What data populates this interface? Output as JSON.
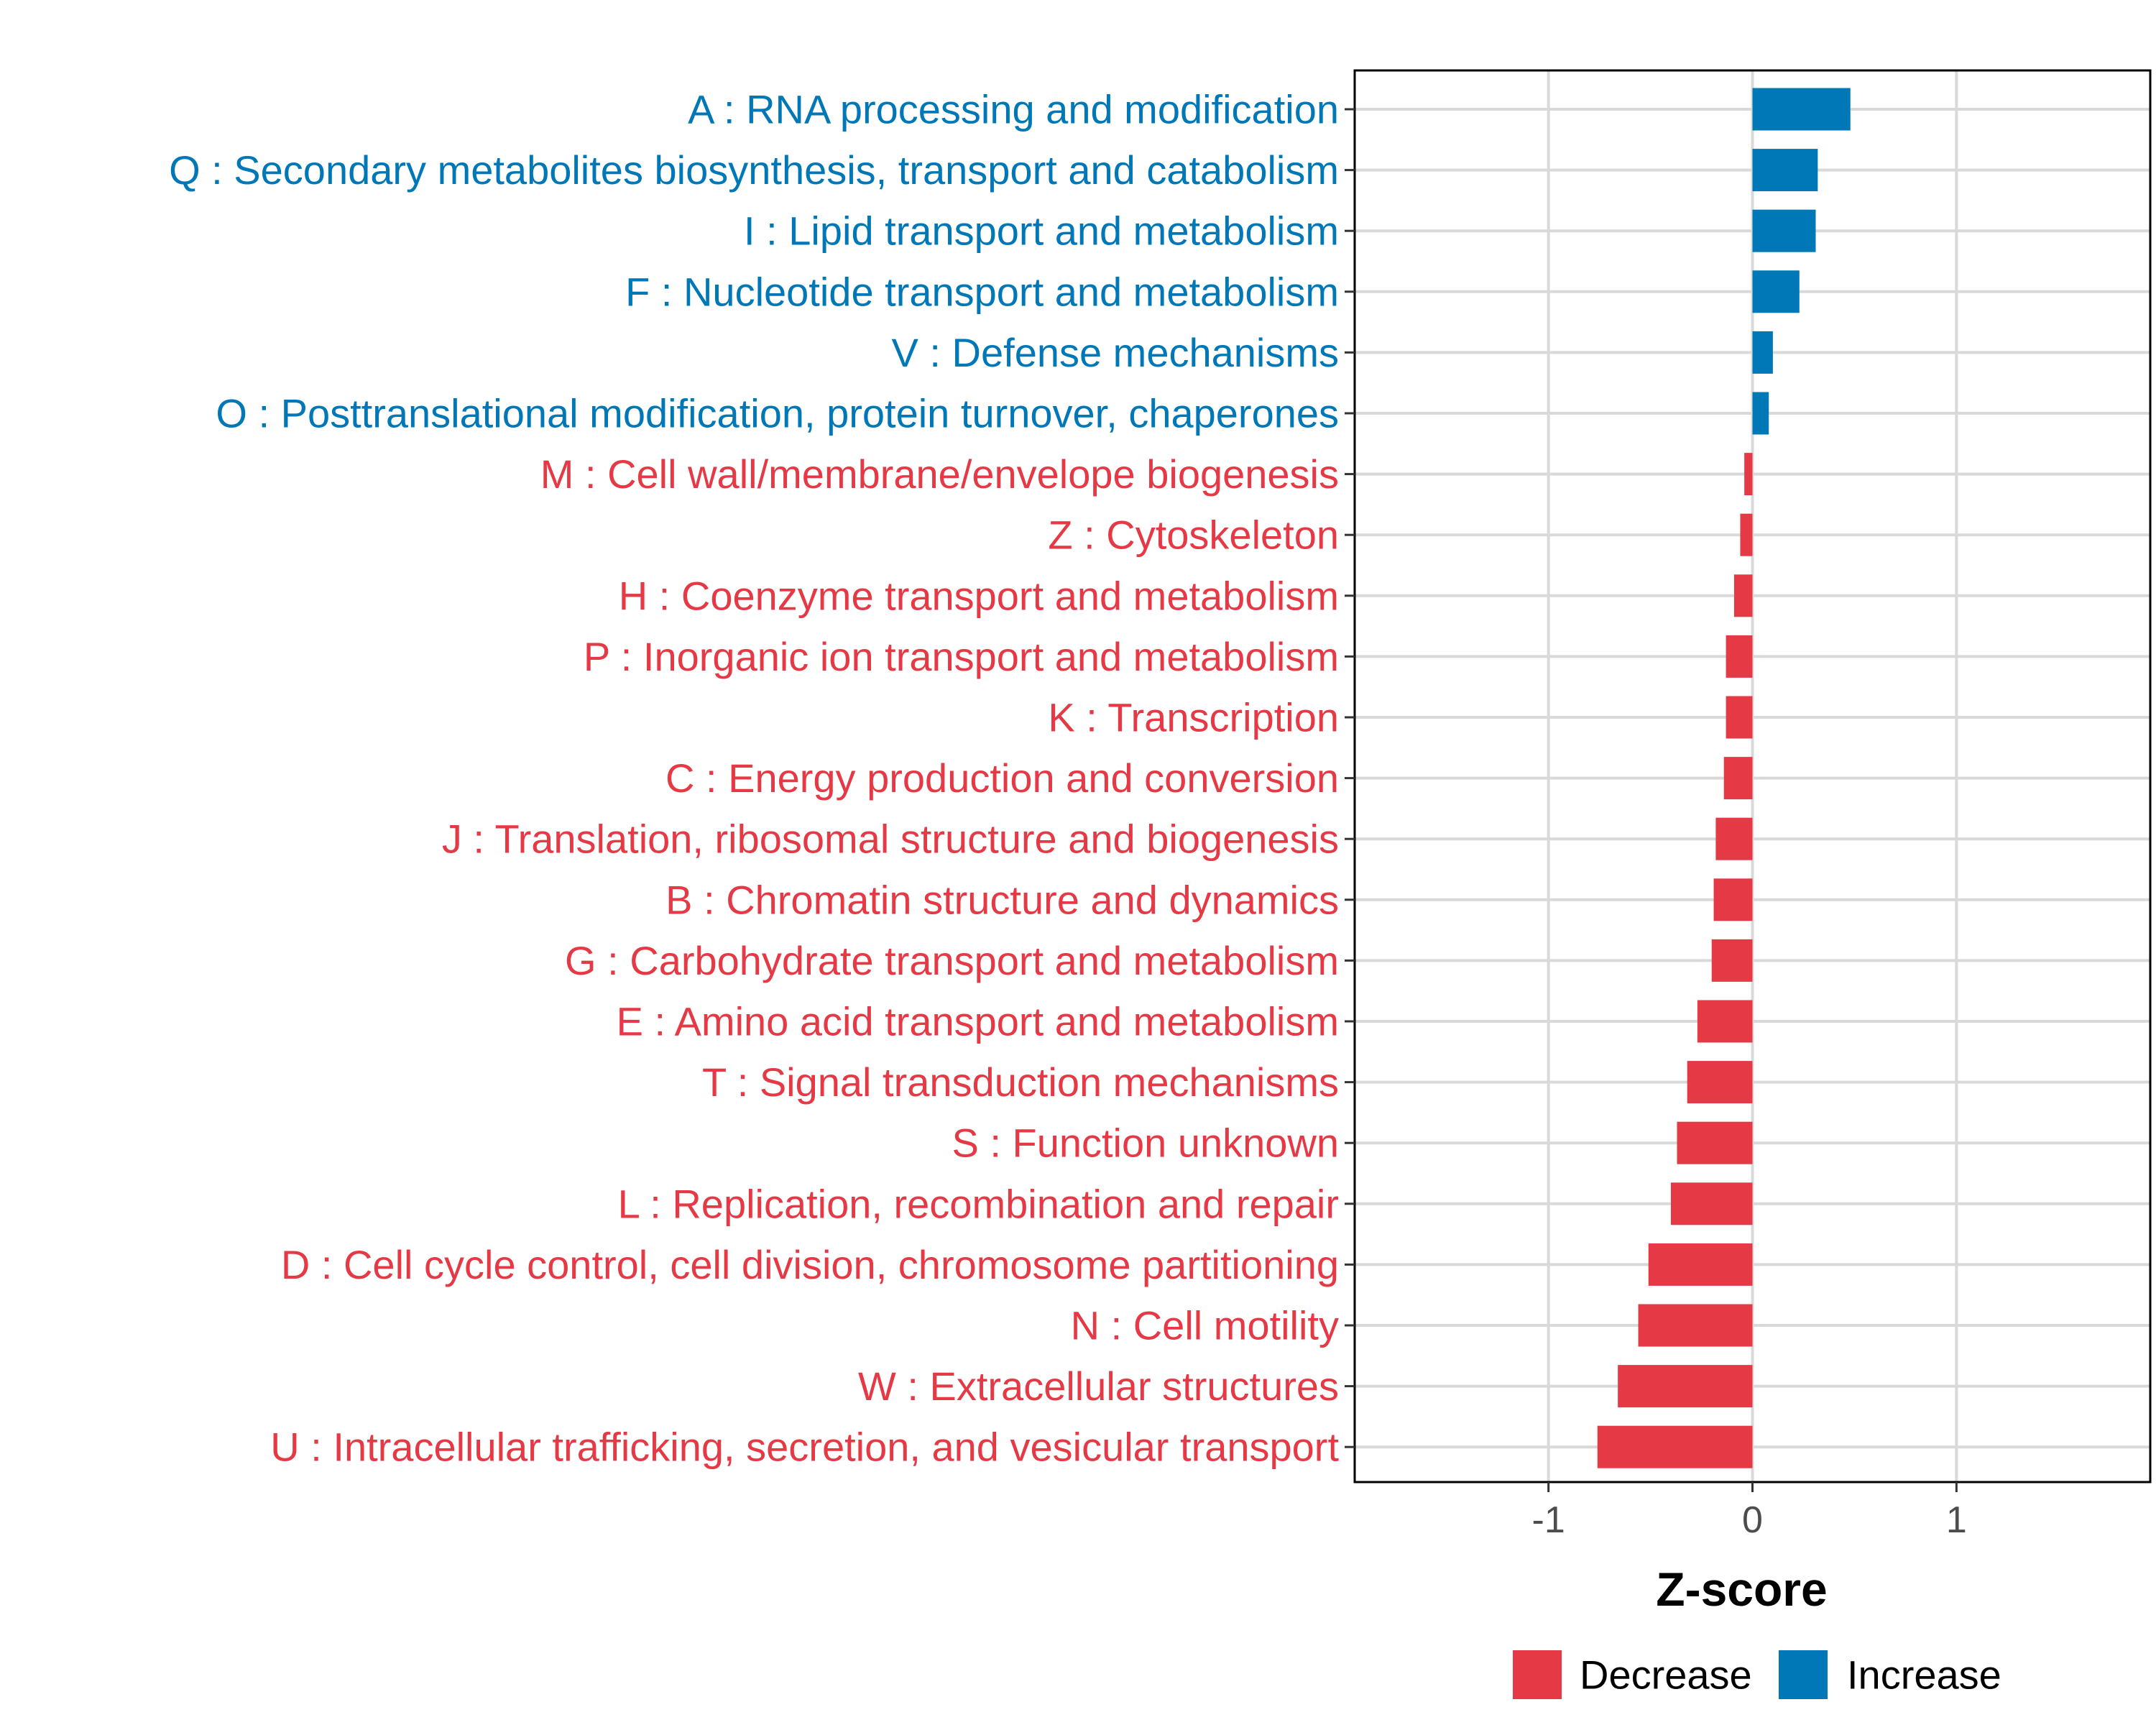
{
  "chart_data": {
    "type": "bar",
    "orientation": "horizontal",
    "xlabel": "Z-score",
    "ylabel": "",
    "xlim": [
      -1.95,
      1.95
    ],
    "xticks": [
      -1,
      0,
      1
    ],
    "xtick_labels": [
      "-1",
      "0",
      "1"
    ],
    "grid": true,
    "legend": {
      "placement": "bottom",
      "entries": [
        {
          "label": "Decrease",
          "color": "#e63946"
        },
        {
          "label": "Increase",
          "color": "#0077b6"
        }
      ]
    },
    "categories": [
      "A : RNA processing and modification",
      "Q : Secondary metabolites biosynthesis, transport and catabolism",
      "I : Lipid transport and metabolism",
      "F : Nucleotide transport and metabolism",
      "V : Defense mechanisms",
      "O : Posttranslational modification, protein turnover, chaperones",
      "M : Cell wall/membrane/envelope biogenesis",
      "Z : Cytoskeleton",
      "H : Coenzyme transport and metabolism",
      "P : Inorganic ion transport and metabolism",
      "K : Transcription",
      "C : Energy production and conversion",
      "J : Translation, ribosomal structure and biogenesis",
      "B : Chromatin structure and dynamics",
      "G : Carbohydrate transport and metabolism",
      "E : Amino acid transport and metabolism",
      "T : Signal transduction mechanisms",
      "S : Function unknown",
      "L : Replication, recombination and repair",
      "D : Cell cycle control, cell division, chromosome partitioning",
      "N : Cell motility",
      "W : Extracellular structures",
      "U : Intracellular trafficking, secretion, and vesicular transport"
    ],
    "values": [
      0.48,
      0.32,
      0.31,
      0.23,
      0.1,
      0.08,
      -0.04,
      -0.06,
      -0.09,
      -0.13,
      -0.13,
      -0.14,
      -0.18,
      -0.19,
      -0.2,
      -0.27,
      -0.32,
      -0.37,
      -0.4,
      -0.51,
      -0.56,
      -0.66,
      -0.76
    ],
    "groups": [
      "Increase",
      "Increase",
      "Increase",
      "Increase",
      "Increase",
      "Increase",
      "Decrease",
      "Decrease",
      "Decrease",
      "Decrease",
      "Decrease",
      "Decrease",
      "Decrease",
      "Decrease",
      "Decrease",
      "Decrease",
      "Decrease",
      "Decrease",
      "Decrease",
      "Decrease",
      "Decrease",
      "Decrease",
      "Decrease"
    ]
  }
}
